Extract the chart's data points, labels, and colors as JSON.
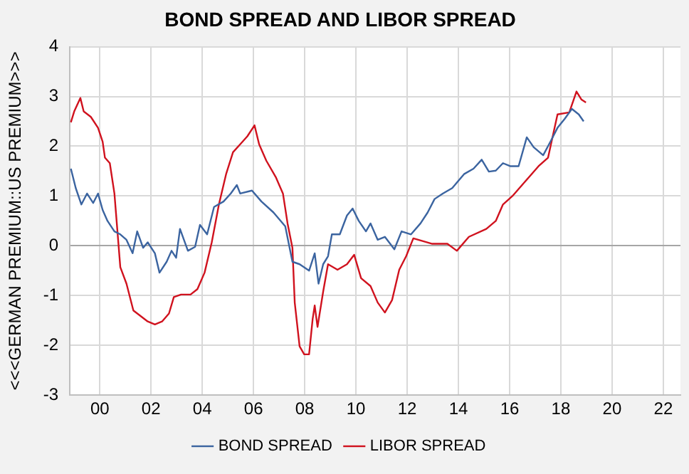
{
  "chart_data": {
    "type": "line",
    "title": "BOND SPREAD AND LIBOR SPREAD",
    "ylabel": "<<<GERMAN PREMIUM::US PREMIUM>>>",
    "xlim": [
      1998.83,
      2022.67
    ],
    "xticks": [
      {
        "value": 2000,
        "label": "00"
      },
      {
        "value": 2002,
        "label": "02"
      },
      {
        "value": 2004,
        "label": "04"
      },
      {
        "value": 2006,
        "label": "06"
      },
      {
        "value": 2008,
        "label": "08"
      },
      {
        "value": 2010,
        "label": "10"
      },
      {
        "value": 2012,
        "label": "12"
      },
      {
        "value": 2014,
        "label": "14"
      },
      {
        "value": 2016,
        "label": "16"
      },
      {
        "value": 2018,
        "label": "18"
      },
      {
        "value": 2020,
        "label": "20"
      },
      {
        "value": 2022,
        "label": "22"
      }
    ],
    "ylim": [
      -3,
      4
    ],
    "yticks": [
      -3,
      -2,
      -1,
      0,
      1,
      2,
      3,
      4
    ],
    "grid": true,
    "legend": "bottom",
    "marker": "none",
    "line_style": "solid",
    "series": [
      {
        "name": "BOND SPREAD",
        "color": "#3b64a0",
        "x": [
          1998.87,
          1999.06,
          1999.28,
          1999.5,
          1999.74,
          1999.93,
          2000.11,
          2000.3,
          2000.57,
          2000.8,
          2001.04,
          2001.28,
          2001.46,
          2001.69,
          2001.87,
          2002.15,
          2002.33,
          2002.61,
          2002.8,
          2002.98,
          2003.13,
          2003.44,
          2003.72,
          2003.91,
          2004.19,
          2004.46,
          2004.83,
          2005.11,
          2005.35,
          2005.48,
          2005.94,
          2006.31,
          2006.78,
          2007.24,
          2007.52,
          2007.8,
          2008.17,
          2008.39,
          2008.54,
          2008.72,
          2008.91,
          2009.06,
          2009.37,
          2009.65,
          2009.87,
          2010.11,
          2010.39,
          2010.57,
          2010.85,
          2011.13,
          2011.5,
          2011.78,
          2012.15,
          2012.52,
          2012.8,
          2013.07,
          2013.39,
          2013.76,
          2014.22,
          2014.59,
          2014.91,
          2015.19,
          2015.46,
          2015.74,
          2016.02,
          2016.35,
          2016.67,
          2016.94,
          2017.31,
          2017.59,
          2017.87,
          2018.15,
          2018.43,
          2018.7,
          2018.89
        ],
        "values": [
          1.55,
          1.16,
          0.83,
          1.05,
          0.86,
          1.05,
          0.72,
          0.5,
          0.29,
          0.23,
          0.12,
          -0.15,
          0.29,
          -0.04,
          0.07,
          -0.15,
          -0.54,
          -0.32,
          -0.1,
          -0.24,
          0.34,
          -0.1,
          -0.02,
          0.42,
          0.23,
          0.78,
          0.89,
          1.05,
          1.22,
          1.05,
          1.11,
          0.89,
          0.67,
          0.39,
          -0.32,
          -0.37,
          -0.5,
          -0.15,
          -0.76,
          -0.37,
          -0.21,
          0.23,
          0.23,
          0.61,
          0.75,
          0.5,
          0.29,
          0.45,
          0.12,
          0.18,
          -0.07,
          0.29,
          0.23,
          0.45,
          0.67,
          0.94,
          1.05,
          1.16,
          1.44,
          1.55,
          1.73,
          1.49,
          1.51,
          1.66,
          1.6,
          1.6,
          2.18,
          1.98,
          1.82,
          2.09,
          2.37,
          2.55,
          2.75,
          2.64,
          2.5
        ]
      },
      {
        "name": "LIBOR SPREAD",
        "color": "#d0121e",
        "x": [
          1998.87,
          1999.0,
          1999.24,
          1999.37,
          1999.65,
          1999.93,
          2000.11,
          2000.2,
          2000.39,
          2000.57,
          2000.8,
          2001.04,
          2001.31,
          2001.59,
          2001.87,
          2002.15,
          2002.43,
          2002.7,
          2002.89,
          2003.17,
          2003.54,
          2003.81,
          2004.09,
          2004.37,
          2004.65,
          2004.93,
          2005.2,
          2005.48,
          2005.76,
          2006.04,
          2006.22,
          2006.5,
          2006.87,
          2007.15,
          2007.33,
          2007.52,
          2007.61,
          2007.8,
          2007.98,
          2008.17,
          2008.31,
          2008.39,
          2008.5,
          2008.72,
          2008.91,
          2009.28,
          2009.65,
          2009.93,
          2010.2,
          2010.57,
          2010.85,
          2011.13,
          2011.41,
          2011.69,
          2011.96,
          2012.24,
          2012.98,
          2013.57,
          2013.94,
          2014.41,
          2015.09,
          2015.46,
          2015.74,
          2016.11,
          2016.57,
          2017.13,
          2017.5,
          2017.87,
          2018.33,
          2018.61,
          2018.8,
          2018.98
        ],
        "values": [
          2.48,
          2.7,
          2.97,
          2.7,
          2.59,
          2.37,
          2.09,
          1.77,
          1.66,
          1.05,
          -0.43,
          -0.76,
          -1.3,
          -1.41,
          -1.52,
          -1.58,
          -1.52,
          -1.36,
          -1.03,
          -0.98,
          -0.98,
          -0.87,
          -0.54,
          0.07,
          0.83,
          1.44,
          1.88,
          2.04,
          2.2,
          2.42,
          2.04,
          1.71,
          1.38,
          1.05,
          0.45,
          -0.04,
          -1.14,
          -2.02,
          -2.18,
          -2.18,
          -1.47,
          -1.2,
          -1.63,
          -0.92,
          -0.37,
          -0.48,
          -0.37,
          -0.18,
          -0.65,
          -0.81,
          -1.14,
          -1.34,
          -1.09,
          -0.48,
          -0.21,
          0.15,
          0.04,
          0.04,
          -0.1,
          0.18,
          0.34,
          0.5,
          0.83,
          1.0,
          1.27,
          1.6,
          1.77,
          2.64,
          2.68,
          3.1,
          2.94,
          2.88
        ]
      }
    ]
  }
}
